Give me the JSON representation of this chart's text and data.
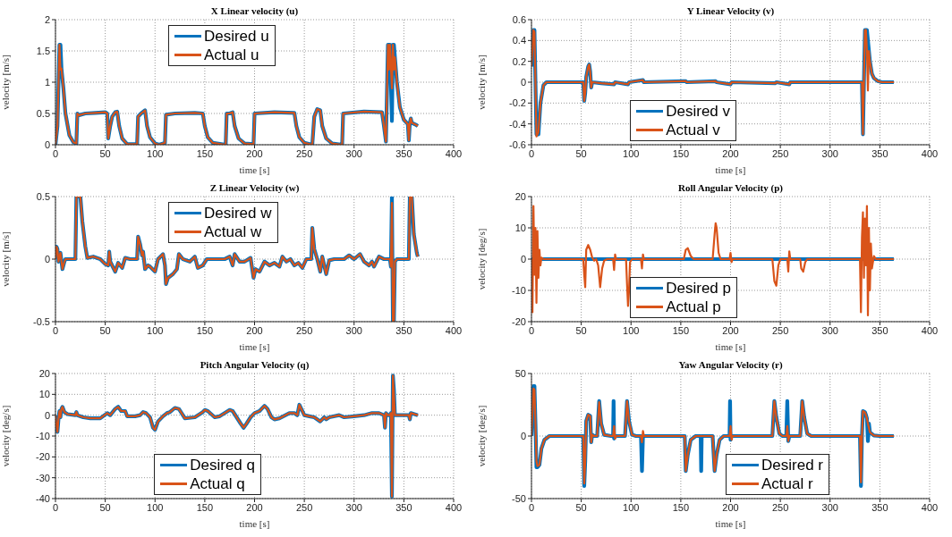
{
  "chart_data": [
    {
      "type": "line",
      "title": "X Linear velocity (u)",
      "xlabel": "time [s]",
      "ylabel": "velocity [m/s]",
      "xlim": [
        0,
        400
      ],
      "xticks": [
        0,
        50,
        100,
        150,
        200,
        250,
        300,
        350,
        400
      ],
      "ylim": [
        0,
        2
      ],
      "yticks": [
        0,
        0.5,
        1,
        1.5,
        2
      ],
      "grid": true,
      "legend": "top",
      "line_style": "solid",
      "x": [
        0,
        2,
        4,
        5,
        6,
        8,
        10,
        14,
        18,
        21,
        22,
        23,
        30,
        40,
        50,
        52,
        53,
        55,
        57,
        60,
        62,
        64,
        67,
        72,
        82,
        83,
        86,
        90,
        92,
        95,
        100,
        104,
        110,
        111,
        120,
        140,
        148,
        150,
        153,
        158,
        171,
        172,
        175,
        178,
        180,
        184,
        190,
        199,
        200,
        220,
        240,
        242,
        245,
        250,
        258,
        260,
        263,
        266,
        268,
        272,
        278,
        288,
        289,
        310,
        328,
        330,
        332,
        334,
        335,
        336,
        338,
        339,
        340,
        341,
        343,
        346,
        350,
        354,
        355,
        356,
        357,
        358,
        362,
        364
      ],
      "series": [
        {
          "name": "Desired u",
          "color": "#0072bd",
          "values": [
            0,
            0.3,
            1.6,
            1.6,
            1.22,
            0.9,
            0.5,
            0.15,
            0.04,
            0.02,
            0.5,
            0.47,
            0.5,
            0.51,
            0.52,
            0.5,
            0.1,
            0.3,
            0.45,
            0.52,
            0.53,
            0.3,
            0.1,
            0.01,
            0.01,
            0.45,
            0.5,
            0.55,
            0.3,
            0.12,
            0.02,
            0,
            0.03,
            0.48,
            0.5,
            0.51,
            0.5,
            0.3,
            0.12,
            0.03,
            0,
            0.5,
            0.5,
            0.52,
            0.3,
            0.1,
            0.02,
            0.01,
            0.5,
            0.52,
            0.51,
            0.3,
            0.12,
            0.03,
            0,
            0.45,
            0.57,
            0.55,
            0.3,
            0.1,
            0.02,
            0,
            0.5,
            0.53,
            0.52,
            0.3,
            0.05,
            1.6,
            1.6,
            1.6,
            0.38,
            1.6,
            1.6,
            1.4,
            1,
            0.6,
            0.4,
            0.33,
            0.07,
            0.35,
            0.42,
            0.35,
            0.32,
            0.3
          ]
        },
        {
          "name": "Actual u",
          "color": "#d95319",
          "values": [
            0,
            0.3,
            1.6,
            1.2,
            1.22,
            0.9,
            0.5,
            0.15,
            0.04,
            0.02,
            0.5,
            0.47,
            0.5,
            0.51,
            0.52,
            0.5,
            0.1,
            0.3,
            0.45,
            0.52,
            0.53,
            0.3,
            0.1,
            0.01,
            0.01,
            0.45,
            0.5,
            0.55,
            0.3,
            0.12,
            0.02,
            0,
            0.03,
            0.48,
            0.5,
            0.51,
            0.5,
            0.3,
            0.12,
            0.03,
            0,
            0.5,
            0.5,
            0.52,
            0.3,
            0.1,
            0.02,
            0.01,
            0.5,
            0.52,
            0.51,
            0.3,
            0.12,
            0.03,
            0,
            0.45,
            0.57,
            0.55,
            0.3,
            0.1,
            0.02,
            0,
            0.5,
            0.53,
            0.52,
            0.3,
            0.05,
            1.6,
            1.2,
            1.6,
            0.9,
            1.6,
            1.2,
            1.4,
            1,
            0.6,
            0.4,
            0.33,
            0.07,
            0.35,
            0.42,
            0.35,
            0.32,
            0.3
          ]
        }
      ]
    },
    {
      "type": "line",
      "title": "Y Linear Velocity (v)",
      "xlabel": "time [s]",
      "ylabel": "velocity [m/s]",
      "xlim": [
        0,
        400
      ],
      "xticks": [
        0,
        50,
        100,
        150,
        200,
        250,
        300,
        350,
        400
      ],
      "ylim": [
        -0.6,
        0.6
      ],
      "yticks": [
        -0.6,
        -0.4,
        -0.2,
        0,
        0.2,
        0.4,
        0.6
      ],
      "grid": true,
      "legend": "bottom",
      "line_style": "solid",
      "x": [
        0,
        2,
        3,
        4,
        5,
        7,
        9,
        12,
        15,
        52,
        53,
        54,
        55,
        57,
        58,
        59,
        60,
        61,
        70,
        83,
        84,
        97,
        98,
        112,
        113,
        155,
        156,
        185,
        186,
        200,
        201,
        245,
        246,
        259,
        260,
        332,
        333,
        334,
        335,
        336,
        337,
        338,
        339,
        340,
        342,
        344,
        348,
        352,
        364
      ],
      "series": [
        {
          "name": "Desired v",
          "color": "#0072bd",
          "values": [
            0.15,
            0.5,
            0.5,
            0,
            -0.5,
            -0.5,
            -0.2,
            -0.03,
            0,
            0,
            -0.18,
            -0.1,
            0.05,
            0.15,
            0.17,
            0.1,
            -0.05,
            0,
            -0.01,
            -0.02,
            0,
            -0.02,
            0,
            0.02,
            0,
            0.01,
            0,
            0.01,
            0,
            -0.02,
            0,
            -0.01,
            0,
            -0.02,
            0,
            0,
            -0.5,
            0,
            0.5,
            0.5,
            0.5,
            0.4,
            0.3,
            0.2,
            0.08,
            0.04,
            0.01,
            0,
            0
          ]
        },
        {
          "name": "Actual v",
          "color": "#d95319",
          "values": [
            0.15,
            0.5,
            0.48,
            0,
            -0.52,
            -0.48,
            -0.2,
            -0.03,
            0,
            0,
            -0.18,
            -0.1,
            0.05,
            0.15,
            0.17,
            0.1,
            -0.05,
            0,
            -0.01,
            -0.02,
            0,
            -0.02,
            0,
            0.02,
            0,
            0.01,
            0,
            0.01,
            0,
            -0.02,
            0,
            -0.01,
            0,
            -0.02,
            0,
            0,
            -0.5,
            0,
            0.5,
            0.5,
            0.3,
            -0.08,
            0.3,
            0.2,
            0.08,
            0.04,
            0.01,
            0,
            0
          ]
        }
      ]
    },
    {
      "type": "line",
      "title": "Z Linear Velocity (w)",
      "xlabel": "time [s]",
      "ylabel": "velocity [m/s]",
      "xlim": [
        0,
        400
      ],
      "xticks": [
        0,
        50,
        100,
        150,
        200,
        250,
        300,
        350,
        400
      ],
      "ylim": [
        -0.5,
        0.5
      ],
      "yticks": [
        -0.5,
        0,
        0.5
      ],
      "grid": true,
      "legend": "top",
      "line_style": "solid",
      "x": [
        0,
        1,
        2,
        3,
        5,
        7,
        9,
        10,
        20,
        21,
        25,
        27,
        30,
        32,
        38,
        45,
        50,
        53,
        54,
        55,
        60,
        63,
        67,
        70,
        75,
        82,
        83,
        85,
        87,
        88,
        90,
        93,
        95,
        100,
        103,
        108,
        110,
        111,
        113,
        118,
        122,
        124,
        128,
        135,
        140,
        143,
        148,
        152,
        170,
        175,
        178,
        180,
        185,
        190,
        196,
        199,
        201,
        205,
        210,
        215,
        220,
        225,
        228,
        232,
        236,
        240,
        244,
        248,
        252,
        257,
        258,
        260,
        263,
        266,
        268,
        272,
        275,
        280,
        290,
        295,
        300,
        306,
        310,
        315,
        318,
        320,
        325,
        330,
        336,
        337,
        338,
        339,
        340,
        341,
        343,
        355,
        356,
        358,
        360,
        363,
        364
      ],
      "series": [
        {
          "name": "Desired w",
          "color": "#0072bd",
          "values": [
            0,
            0.1,
            0.08,
            -0.02,
            0.05,
            -0.08,
            -0.02,
            0,
            0,
            0.5,
            0.5,
            0.3,
            0.1,
            0.01,
            0.02,
            0,
            -0.04,
            -0.05,
            0.06,
            -0.02,
            -0.1,
            -0.03,
            -0.07,
            0.01,
            0,
            0,
            0.18,
            0.12,
            0.03,
            0.06,
            -0.08,
            -0.05,
            -0.06,
            -0.1,
            0,
            0.04,
            -0.05,
            -0.2,
            -0.15,
            -0.12,
            -0.08,
            0.04,
            0,
            -0.02,
            0.02,
            -0.07,
            -0.05,
            0,
            0,
            0.02,
            -0.05,
            0.04,
            -0.02,
            -0.02,
            0.01,
            -0.15,
            -0.08,
            -0.1,
            -0.02,
            -0.05,
            -0.03,
            -0.06,
            0.02,
            -0.02,
            0,
            -0.05,
            -0.03,
            -0.07,
            0,
            0,
            0.25,
            0.08,
            0,
            -0.1,
            0.02,
            -0.12,
            -0.01,
            0,
            0,
            0.03,
            0,
            0.04,
            -0.02,
            -0.05,
            -0.02,
            -0.06,
            0.02,
            0,
            0,
            -0.06,
            0.5,
            -0.5,
            -0.5,
            -0.02,
            0,
            0,
            0.5,
            0.5,
            0.2,
            0.05,
            0.02
          ]
        },
        {
          "name": "Actual w",
          "color": "#d95319",
          "values": [
            0,
            0.1,
            0.08,
            -0.02,
            0.05,
            -0.08,
            -0.02,
            0,
            0,
            0.5,
            0.5,
            0.3,
            0.1,
            0.01,
            0.02,
            0,
            -0.04,
            -0.05,
            0.06,
            -0.02,
            -0.1,
            -0.03,
            -0.07,
            0.01,
            0,
            0,
            0.18,
            0.12,
            0.03,
            0.06,
            -0.08,
            -0.05,
            -0.06,
            -0.1,
            0,
            0.04,
            -0.05,
            -0.2,
            -0.15,
            -0.12,
            -0.08,
            0.04,
            0,
            -0.02,
            0.02,
            -0.07,
            -0.05,
            0,
            0,
            0.02,
            -0.05,
            0.04,
            -0.02,
            -0.02,
            0.01,
            -0.15,
            -0.08,
            -0.1,
            -0.02,
            -0.05,
            -0.03,
            -0.06,
            0.02,
            -0.02,
            0,
            -0.05,
            -0.03,
            -0.07,
            0,
            0,
            0.25,
            0.08,
            0,
            -0.1,
            0.02,
            -0.12,
            -0.01,
            0,
            0,
            0.03,
            0,
            0.04,
            -0.02,
            -0.05,
            -0.02,
            -0.06,
            0.02,
            0,
            0,
            -0.06,
            0.45,
            -0.5,
            -0.5,
            -0.02,
            0,
            0,
            0.5,
            0.5,
            0.2,
            0.05,
            0.02
          ]
        }
      ]
    },
    {
      "type": "line",
      "title": "Roll Angular Velocity (p)",
      "xlabel": "time [s]",
      "ylabel": "velocity [deg/s]",
      "xlim": [
        0,
        400
      ],
      "xticks": [
        0,
        50,
        100,
        150,
        200,
        250,
        300,
        350,
        400
      ],
      "ylim": [
        -20,
        20
      ],
      "yticks": [
        -20,
        -10,
        0,
        10,
        20
      ],
      "grid": true,
      "legend": "bottom",
      "line_style": "solid",
      "series": [
        {
          "name": "Desired p",
          "color": "#0072bd",
          "x": [
            0,
            364
          ],
          "values": [
            0,
            0
          ]
        },
        {
          "name": "Actual p",
          "color": "#d95319",
          "x": [
            0,
            1,
            2,
            3,
            4,
            5,
            6,
            7,
            8,
            9,
            10,
            12,
            52,
            53,
            54,
            55,
            57,
            59,
            61,
            63,
            65,
            67,
            69,
            71,
            73,
            76,
            82,
            83,
            84,
            85,
            95,
            96,
            97,
            98,
            99,
            101,
            110,
            111,
            112,
            113,
            153,
            155,
            157,
            160,
            163,
            182,
            184,
            185,
            186,
            188,
            190,
            199,
            200,
            201,
            202,
            242,
            244,
            246,
            248,
            250,
            257,
            258,
            259,
            260,
            270,
            271,
            273,
            275,
            277,
            330,
            331,
            332,
            333,
            334,
            335,
            336,
            337,
            338,
            339,
            340,
            341,
            342,
            344,
            346,
            364
          ],
          "values": [
            0,
            -17,
            17,
            -5,
            10,
            -14,
            9,
            -6,
            3,
            -2,
            0.5,
            0,
            0,
            -5,
            -9,
            3,
            4.5,
            3,
            0.5,
            -0.5,
            0,
            -2,
            -9,
            -3,
            -0.5,
            0,
            0,
            -3.5,
            1.5,
            0,
            0,
            -8,
            -15,
            -10,
            -1,
            0,
            0,
            -3,
            1.5,
            0,
            0,
            3,
            3.5,
            1,
            0,
            0,
            8,
            11.5,
            10,
            2,
            0,
            0,
            2,
            -1,
            0,
            0,
            -7,
            -8.5,
            -2,
            0,
            0,
            -4,
            2.5,
            0,
            0,
            -3,
            -4,
            -1,
            0,
            0,
            -17,
            7,
            15,
            -6,
            13,
            -2,
            17,
            -18,
            10,
            -10,
            5,
            -3,
            1,
            0,
            0
          ]
        }
      ]
    },
    {
      "type": "line",
      "title": "Pitch Angular Velocity (q)",
      "xlabel": "time [s]",
      "ylabel": "velocity [deg/s]",
      "xlim": [
        0,
        400
      ],
      "xticks": [
        0,
        50,
        100,
        150,
        200,
        250,
        300,
        350,
        400
      ],
      "ylim": [
        -40,
        20
      ],
      "yticks": [
        -40,
        -30,
        -20,
        -10,
        0,
        10,
        20
      ],
      "grid": true,
      "legend": "bottom",
      "line_style": "solid",
      "x": [
        0,
        1,
        2,
        3,
        4,
        5,
        6,
        7,
        9,
        12,
        20,
        21,
        22,
        28,
        35,
        45,
        52,
        55,
        60,
        63,
        66,
        70,
        72,
        80,
        85,
        88,
        91,
        95,
        98,
        100,
        103,
        108,
        112,
        115,
        120,
        124,
        130,
        140,
        148,
        150,
        153,
        160,
        165,
        170,
        175,
        178,
        182,
        186,
        189,
        192,
        196,
        200,
        205,
        210,
        213,
        217,
        220,
        225,
        235,
        240,
        243,
        245,
        247,
        250,
        255,
        260,
        266,
        270,
        272,
        275,
        285,
        290,
        300,
        310,
        318,
        325,
        330,
        331,
        332,
        334,
        336,
        337,
        338,
        339,
        340,
        341,
        345,
        355,
        356,
        357,
        364
      ],
      "series": [
        {
          "name": "Desired q",
          "color": "#0072bd",
          "values": [
            0,
            -5,
            -8,
            -2,
            2,
            -1,
            3,
            4,
            1.5,
            0.5,
            0,
            1.5,
            0,
            -1,
            -1.5,
            -1.5,
            1,
            0,
            3,
            4,
            2,
            2,
            -0.5,
            -0.5,
            0,
            1.5,
            1,
            -1,
            -6,
            -7,
            -3,
            -0.5,
            1,
            1.5,
            3.5,
            3,
            -1.5,
            -1,
            1.5,
            2.5,
            2,
            -1,
            -0.5,
            1,
            2.5,
            2,
            -1,
            -4,
            -6,
            -4,
            -1,
            1,
            2,
            4.5,
            3,
            -1,
            -2,
            -1.5,
            1,
            1,
            0,
            5,
            3,
            0,
            -0.5,
            -1,
            -3,
            -1,
            -2,
            -1,
            0,
            -1,
            -0.5,
            0,
            1,
            1,
            0,
            -6,
            1,
            0,
            0,
            1,
            -39,
            19,
            12,
            0,
            0,
            0,
            -2,
            1,
            0
          ]
        },
        {
          "name": "Actual q",
          "color": "#d95319",
          "values": [
            0,
            -5,
            -8,
            -2,
            2,
            -1,
            3,
            4,
            1.5,
            0.5,
            0,
            1.5,
            0,
            -1,
            -1.5,
            -1.5,
            1,
            0,
            3,
            4,
            2,
            2,
            -0.5,
            -0.5,
            0,
            1.5,
            1,
            -1,
            -6,
            -7,
            -3,
            -0.5,
            1,
            1.5,
            3.5,
            3,
            -1.5,
            -1,
            1.5,
            2.5,
            2,
            -1,
            -0.5,
            1,
            2.5,
            2,
            -1,
            -4,
            -6,
            -4,
            -1,
            1,
            2,
            4.5,
            3,
            -1,
            -2,
            -1.5,
            1,
            1,
            0,
            5,
            3,
            0,
            -0.5,
            -1,
            -3,
            -1,
            -2,
            -1,
            0,
            -1,
            -0.5,
            0,
            1,
            1,
            0,
            -6,
            1,
            0,
            0,
            1,
            -39,
            19,
            10,
            0,
            0,
            0,
            -2,
            1,
            0
          ]
        }
      ]
    },
    {
      "type": "line",
      "title": "Yaw Angular Velocity (r)",
      "xlabel": "time [s]",
      "ylabel": "velocity [deg/s]",
      "xlim": [
        0,
        400
      ],
      "xticks": [
        0,
        50,
        100,
        150,
        200,
        250,
        300,
        350,
        400
      ],
      "ylim": [
        -50,
        50
      ],
      "yticks": [
        -50,
        0,
        50
      ],
      "grid": true,
      "legend": "bottom right",
      "line_style": "solid",
      "series": [
        {
          "name": "Desired r",
          "color": "#0072bd",
          "x": [
            0,
            2,
            3,
            4,
            5,
            6,
            8,
            10,
            13,
            18,
            52,
            53,
            54,
            55,
            57,
            59,
            60,
            61,
            63,
            66,
            68,
            70,
            73,
            80,
            82,
            82.5,
            83,
            84,
            94,
            96,
            98,
            101,
            105,
            110,
            111,
            112,
            154,
            155,
            157,
            160,
            165,
            170,
            170.5,
            171,
            182,
            184,
            186,
            189,
            193,
            199,
            199.5,
            200,
            201,
            242,
            244,
            246,
            249,
            252,
            256,
            257,
            258,
            259,
            270,
            272,
            274,
            277,
            281,
            330,
            331,
            332,
            333,
            335,
            336,
            337,
            338,
            339,
            340,
            344,
            350,
            364
          ],
          "values": [
            0,
            40,
            40,
            10,
            -25,
            -25,
            -23,
            -10,
            -3,
            0,
            0,
            -40,
            -20,
            12,
            17,
            16,
            -5,
            1,
            0,
            0,
            28,
            10,
            1,
            0,
            0,
            28,
            -2,
            0,
            0,
            28,
            12,
            1,
            0,
            0,
            -28,
            0,
            0,
            -28,
            -15,
            -3,
            0,
            0,
            -28,
            0,
            0,
            -28,
            -15,
            -3,
            0,
            0,
            28,
            -3,
            0,
            0,
            28,
            15,
            2,
            0,
            0,
            28,
            -4,
            0,
            0,
            28,
            15,
            2,
            0,
            0,
            -40,
            0,
            20,
            19,
            17,
            14,
            -4,
            10,
            3,
            0.5,
            0,
            0
          ]
        },
        {
          "name": "Actual r",
          "color": "#d95319",
          "x": [
            0,
            2,
            3,
            4,
            5,
            6,
            8,
            10,
            13,
            18,
            52,
            53,
            54,
            55,
            57,
            59,
            60,
            61,
            63,
            66,
            68,
            70,
            73,
            80,
            82,
            83,
            84,
            85,
            94,
            96,
            98,
            101,
            105,
            110,
            111,
            112,
            113,
            154,
            155,
            157,
            160,
            165,
            182,
            184,
            186,
            189,
            193,
            199,
            200,
            201,
            202,
            242,
            244,
            246,
            249,
            252,
            256,
            257,
            258,
            259,
            270,
            272,
            274,
            277,
            281,
            330,
            331,
            332,
            333,
            335,
            336,
            337,
            338,
            340,
            344,
            350,
            364
          ],
          "values": [
            0,
            38,
            37,
            10,
            -20,
            -24,
            -23,
            -10,
            -3,
            0,
            0,
            -38,
            -20,
            12,
            17,
            16,
            -5,
            1,
            0,
            0,
            27,
            10,
            1,
            0,
            0,
            8,
            -2,
            0,
            0,
            28,
            12,
            1,
            0,
            0,
            -5,
            4,
            0,
            0,
            -28,
            -15,
            -3,
            0,
            0,
            -28,
            -15,
            -3,
            0,
            0,
            8,
            -3,
            0,
            0,
            28,
            15,
            2,
            0,
            0,
            8,
            -4,
            0,
            0,
            28,
            15,
            2,
            0,
            0,
            -37,
            0,
            20,
            19,
            17,
            14,
            10,
            3,
            0.5,
            0,
            0
          ]
        }
      ]
    }
  ]
}
